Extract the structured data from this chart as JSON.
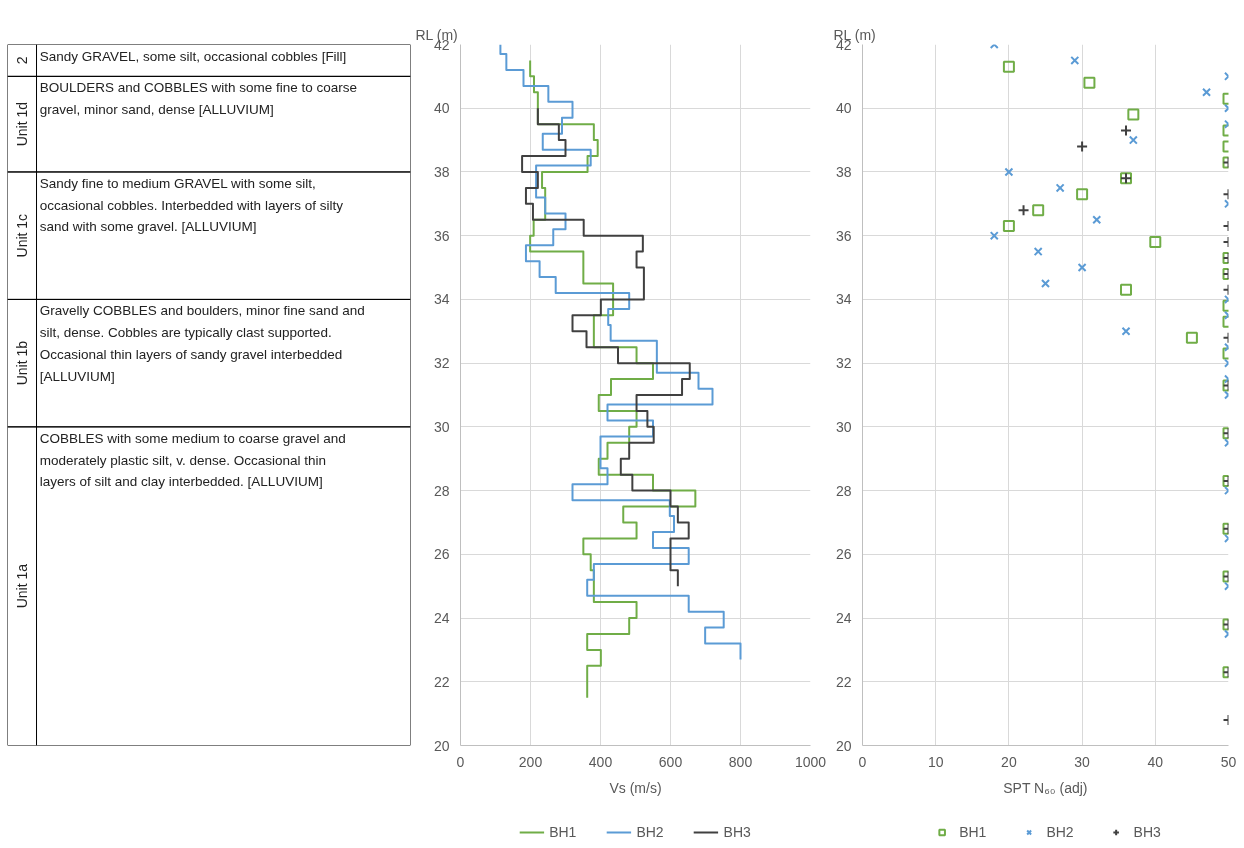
{
  "chart_data": [
    {
      "type": "other",
      "annotations": [
        "2",
        "Sandy GRAVEL, some silt, occasional cobbles [Fill]",
        "Unit 1d",
        "BOULDERS and COBBLES with some fine to coarse\ngravel, minor sand, dense [ALLUVIUM]",
        "Unit 1c",
        "Sandy fine to medium GRAVEL with some silt,\noccasional cobbles. Interbedded with layers of silty\nsand with some gravel.  [ALLUVIUM]",
        "Unit 1b",
        "Gravelly COBBLES and boulders, minor fine sand and\nsilt, dense. Cobbles are typically clast supported.\nOccasional thin layers of sandy gravel interbedded\n[ALLUVIUM]",
        "Unit 1a",
        "COBBLES with some medium to coarse gravel and\nmoderately plastic silt, v. dense. Occasional thin\nlayers of silt and clay interbedded. [ALLUVIUM]"
      ]
    },
    {
      "type": "line",
      "xlabel": "Vs (m/s)",
      "ylabel": "RL (m)",
      "xlim": [
        0,
        1000
      ],
      "xticks": [
        0,
        200,
        400,
        600,
        800,
        1000
      ],
      "ylim": [
        20,
        42
      ],
      "yticks": [
        20,
        22,
        24,
        26,
        28,
        30,
        32,
        34,
        36,
        38,
        40,
        42
      ],
      "grid": true,
      "legend": "bottom",
      "series": [
        {
          "name": "BH1",
          "color": "#70ad47",
          "x": [
            199,
            199,
            210,
            210,
            221,
            221,
            381,
            381,
            392,
            392,
            363,
            363,
            233,
            233,
            242,
            242,
            209,
            209,
            199,
            199,
            351,
            351,
            436,
            436,
            381,
            381,
            503,
            503,
            550,
            550,
            430,
            430,
            395,
            395,
            503,
            503,
            482,
            482,
            420,
            420,
            395,
            395,
            550,
            550,
            671,
            671,
            465,
            465,
            503,
            503,
            351,
            351,
            372,
            372,
            381,
            381,
            503,
            503,
            482,
            482,
            362,
            362,
            401,
            401,
            362,
            362
          ],
          "values": [
            41.5,
            41,
            41,
            40.5,
            40.5,
            39.5,
            39.5,
            39,
            39,
            38.5,
            38.5,
            38,
            38,
            37.5,
            37.5,
            36.5,
            36.5,
            36,
            36,
            35.5,
            35.5,
            34.5,
            34.5,
            33.5,
            33.5,
            32.5,
            32.5,
            32,
            32,
            31.5,
            31.5,
            31,
            31,
            30.5,
            30.5,
            30,
            30,
            29.5,
            29.5,
            29,
            29,
            28.5,
            28.5,
            28,
            28,
            27.5,
            27.5,
            27,
            27,
            26.5,
            26.5,
            26,
            26,
            25.5,
            25.5,
            24.5,
            24.5,
            24,
            24,
            23.5,
            23.5,
            23,
            23,
            22.5,
            22.5,
            21.5
          ]
        },
        {
          "name": "BH2",
          "color": "#5b9bd5",
          "x": [
            114,
            114,
            131,
            131,
            180,
            180,
            251,
            251,
            320,
            320,
            290,
            290,
            235,
            235,
            372,
            372,
            216,
            216,
            242,
            242,
            300,
            300,
            265,
            265,
            187,
            187,
            226,
            226,
            272,
            272,
            482,
            482,
            422,
            422,
            429,
            429,
            561,
            561,
            680,
            680,
            720,
            720,
            420,
            420,
            550,
            550,
            400,
            400,
            420,
            420,
            320,
            320,
            598,
            598,
            610,
            610,
            550,
            550,
            652,
            652,
            381,
            381,
            362,
            362,
            652,
            652,
            752,
            752,
            699,
            699,
            800,
            800
          ],
          "values": [
            42,
            41.7,
            41.7,
            41.2,
            41.2,
            40.7,
            40.7,
            40.2,
            40.2,
            39.7,
            39.7,
            39.2,
            39.2,
            38.7,
            38.7,
            38.2,
            38.2,
            37.2,
            37.2,
            36.7,
            36.7,
            36.2,
            36.2,
            35.7,
            35.7,
            35.2,
            35.2,
            34.7,
            34.7,
            34.2,
            34.2,
            33.7,
            33.7,
            33.2,
            33.2,
            32.7,
            32.7,
            31.7,
            31.7,
            31.2,
            31.2,
            30.7,
            30.7,
            30.2,
            30.2,
            29.7,
            29.7,
            28.7,
            28.7,
            28.2,
            28.2,
            27.7,
            27.7,
            27.2,
            27.2,
            26.7,
            26.7,
            26.2,
            26.2,
            25.7,
            25.7,
            25.2,
            25.2,
            24.7,
            24.7,
            24.2,
            24.2,
            23.7,
            23.7,
            23.2,
            23.2,
            22.7
          ]
        },
        {
          "name": "BH3",
          "color": "#404040",
          "x": [
            221,
            221,
            281,
            281,
            300,
            300,
            176,
            176,
            221,
            221,
            187,
            187,
            207,
            207,
            352,
            352,
            521,
            521,
            503,
            503,
            524,
            524,
            401,
            401,
            320,
            320,
            360,
            360,
            450,
            450,
            655,
            655,
            633,
            633,
            503,
            503,
            534,
            534,
            552,
            552,
            482,
            482,
            458,
            458,
            491,
            491,
            600,
            600,
            621,
            621,
            652,
            652,
            600,
            600,
            621,
            621
          ],
          "values": [
            40,
            39.5,
            39.5,
            39,
            39,
            38.5,
            38.5,
            38,
            38,
            37.5,
            37.5,
            37,
            37,
            36.5,
            36.5,
            36,
            36,
            35.5,
            35.5,
            35,
            35,
            34,
            34,
            33.5,
            33.5,
            33,
            33,
            32.5,
            32.5,
            32,
            32,
            31.5,
            31.5,
            31,
            31,
            30.5,
            30.5,
            30,
            30,
            29.5,
            29.5,
            29,
            29,
            28.5,
            28.5,
            28,
            28,
            27.5,
            27.5,
            27,
            27,
            26.5,
            26.5,
            25.5,
            25.5,
            25
          ]
        }
      ]
    },
    {
      "type": "scatter",
      "xlabel": "SPT N₆₀ (adj)",
      "ylabel": "RL (m)",
      "xlim": [
        0,
        50
      ],
      "xticks": [
        0,
        10,
        20,
        30,
        40,
        50
      ],
      "ylim": [
        20,
        42
      ],
      "yticks": [
        20,
        22,
        24,
        26,
        28,
        30,
        32,
        34,
        36,
        38,
        40,
        42
      ],
      "grid": true,
      "legend": "bottom",
      "series": [
        {
          "name": "BH1",
          "color": "#70ad47",
          "marker": "square",
          "x": [
            20,
            31,
            50,
            37,
            50,
            50,
            50,
            36,
            30,
            24,
            20,
            40,
            50,
            50,
            36,
            50,
            50,
            45,
            50,
            50,
            50,
            50,
            50,
            50,
            50,
            50
          ],
          "values": [
            41.3,
            40.8,
            40.3,
            39.8,
            39.3,
            38.8,
            38.3,
            37.8,
            37.3,
            36.8,
            36.3,
            35.8,
            35.3,
            34.8,
            34.3,
            33.8,
            33.3,
            32.8,
            32.3,
            31.3,
            29.8,
            28.3,
            26.8,
            25.3,
            23.8,
            22.3
          ]
        },
        {
          "name": "BH2",
          "color": "#5b9bd5",
          "marker": "x",
          "x": [
            18,
            29,
            50,
            47,
            50,
            50,
            37,
            20,
            27,
            50,
            32,
            18,
            24,
            30,
            25,
            50,
            50,
            36,
            50,
            50,
            50,
            50,
            50,
            50,
            50,
            50,
            50
          ],
          "values": [
            42,
            41.5,
            41,
            40.5,
            40,
            39.5,
            39,
            38,
            37.5,
            37,
            36.5,
            36,
            35.5,
            35,
            34.5,
            34,
            33.5,
            33,
            32.5,
            32,
            31.5,
            31,
            29.5,
            28,
            26.5,
            25,
            23.5
          ]
        },
        {
          "name": "BH3",
          "color": "#404040",
          "marker": "cross",
          "x": [
            36,
            30,
            50,
            36,
            50,
            22,
            50,
            50,
            50,
            50,
            50,
            50,
            50,
            50,
            50,
            50,
            50,
            50,
            50,
            50
          ],
          "values": [
            39.3,
            38.8,
            38.3,
            37.8,
            37.3,
            36.8,
            36.3,
            35.8,
            35.3,
            34.8,
            34.3,
            32.8,
            31.3,
            29.8,
            28.3,
            26.8,
            25.3,
            23.8,
            22.3,
            20.8
          ]
        }
      ]
    }
  ]
}
